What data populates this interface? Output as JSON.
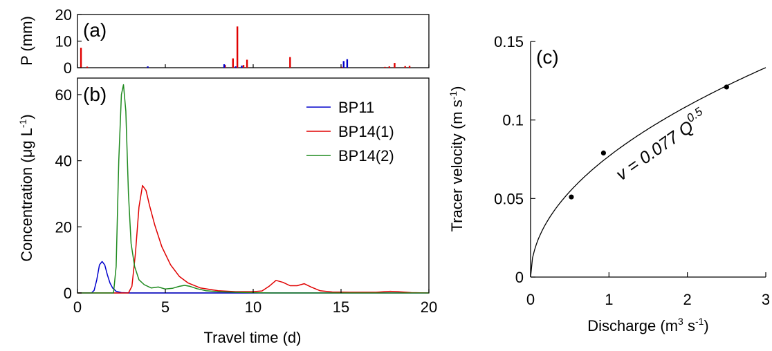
{
  "chart_data": [
    {
      "id": "a",
      "type": "bar",
      "panel_label": "(a)",
      "xlim": [
        0,
        20
      ],
      "ylim": [
        0,
        20
      ],
      "ylabel": "P (mm)",
      "yticks": [
        "0",
        "10",
        "20"
      ],
      "series": [
        {
          "name": "BP14(1)",
          "color": "#e00000",
          "x": [
            0.2,
            0.55,
            8.4,
            8.85,
            9.1,
            9.45,
            9.65,
            12.1,
            15.05,
            17.5,
            17.75,
            18.05,
            18.65,
            18.9
          ],
          "values": [
            7.5,
            0.4,
            1.0,
            3.5,
            15.5,
            1.0,
            3.0,
            4.0,
            0.3,
            0.3,
            0.5,
            1.8,
            0.6,
            0.7
          ]
        },
        {
          "name": "BP11",
          "color": "#0000cc",
          "x": [
            4.0,
            8.35,
            9.0,
            9.35,
            15.15,
            15.35
          ],
          "values": [
            0.5,
            1.3,
            0.5,
            0.8,
            2.5,
            3.2
          ]
        }
      ]
    },
    {
      "id": "b",
      "type": "line",
      "panel_label": "(b)",
      "xlabel": "Travel time (d)",
      "ylabel": "Concentration (μg L",
      "ylabel_sup": "-1",
      "ylabel_end": ")",
      "xlim": [
        0,
        20
      ],
      "ylim": [
        0,
        65
      ],
      "xticks": [
        "0",
        "5",
        "10",
        "15",
        "20"
      ],
      "yticks": [
        "0",
        "20",
        "40",
        "60"
      ],
      "series": [
        {
          "name": "BP11",
          "color": "#0000cc",
          "x": [
            0,
            0.8,
            0.95,
            1.1,
            1.25,
            1.4,
            1.55,
            1.7,
            1.85,
            2.0,
            2.2,
            2.5,
            3,
            5,
            10,
            15,
            20
          ],
          "y": [
            0,
            0,
            0.8,
            4,
            8.5,
            9.5,
            8.5,
            5.5,
            3,
            1.5,
            0.5,
            0.1,
            0,
            0,
            0,
            0,
            0
          ]
        },
        {
          "name": "BP14(1)",
          "color": "#e00000",
          "x": [
            0,
            2.9,
            3.1,
            3.3,
            3.5,
            3.7,
            3.9,
            4.1,
            4.4,
            4.8,
            5.3,
            5.8,
            6.3,
            7,
            8,
            9,
            10,
            10.5,
            10.9,
            11.3,
            11.7,
            12.1,
            12.5,
            12.9,
            13.3,
            13.8,
            14.5,
            15.5,
            17,
            17.8,
            18.2,
            19,
            20
          ],
          "y": [
            0,
            0,
            2,
            12,
            26,
            32.5,
            31,
            26.5,
            20.5,
            14,
            8.5,
            5,
            3,
            1.5,
            0.7,
            0.4,
            0.4,
            0.6,
            2,
            3.8,
            3.2,
            2.2,
            2.2,
            2.8,
            1.8,
            0.7,
            0.3,
            0.2,
            0.2,
            0.5,
            0.4,
            0.1,
            0
          ]
        },
        {
          "name": "BP14(2)",
          "color": "#1e8a1e",
          "x": [
            0,
            2.05,
            2.2,
            2.35,
            2.5,
            2.62,
            2.75,
            2.9,
            3.05,
            3.25,
            3.5,
            3.8,
            4.2,
            4.6,
            5.0,
            5.4,
            5.8,
            6.1,
            6.4,
            6.8,
            7.3,
            8,
            9,
            10,
            11,
            14,
            20
          ],
          "y": [
            0,
            0,
            8,
            40,
            60,
            63,
            55,
            30,
            15,
            8,
            4,
            2.5,
            1.5,
            1.8,
            1.2,
            1.4,
            2.0,
            2.3,
            2.0,
            1.3,
            0.7,
            0.4,
            0.2,
            0.1,
            0,
            0,
            0
          ]
        }
      ]
    },
    {
      "id": "c",
      "type": "scatter",
      "panel_label": "(c)",
      "xlabel": "Discharge (m",
      "xlabel_sup1": "3",
      "xlabel_mid": " s",
      "xlabel_sup2": "-1",
      "xlabel_end": ")",
      "ylabel": "Tracer velocity (m s",
      "ylabel_sup": "-1",
      "ylabel_end": ")",
      "xlim": [
        0,
        3
      ],
      "ylim": [
        0,
        0.15
      ],
      "xticks": [
        "0",
        "1",
        "2",
        "3"
      ],
      "yticks": [
        "0",
        "0.05",
        "0.1",
        "0.15"
      ],
      "points": [
        {
          "x": 0.52,
          "y": 0.051
        },
        {
          "x": 0.93,
          "y": 0.079
        },
        {
          "x": 2.5,
          "y": 0.121
        }
      ],
      "fit": {
        "coefficient": 0.077,
        "exponent": 0.5
      },
      "equation_main": "v = 0.077 Q",
      "equation_sup": "0.5"
    }
  ],
  "legend": {
    "entries": [
      "BP11",
      "BP14(1)",
      "BP14(2)"
    ],
    "placement": "top-right of panel (b)"
  },
  "colors": {
    "BP11": "#0000cc",
    "BP14(1)": "#e00000",
    "BP14(2)": "#1e8a1e",
    "axis": "#000000"
  }
}
